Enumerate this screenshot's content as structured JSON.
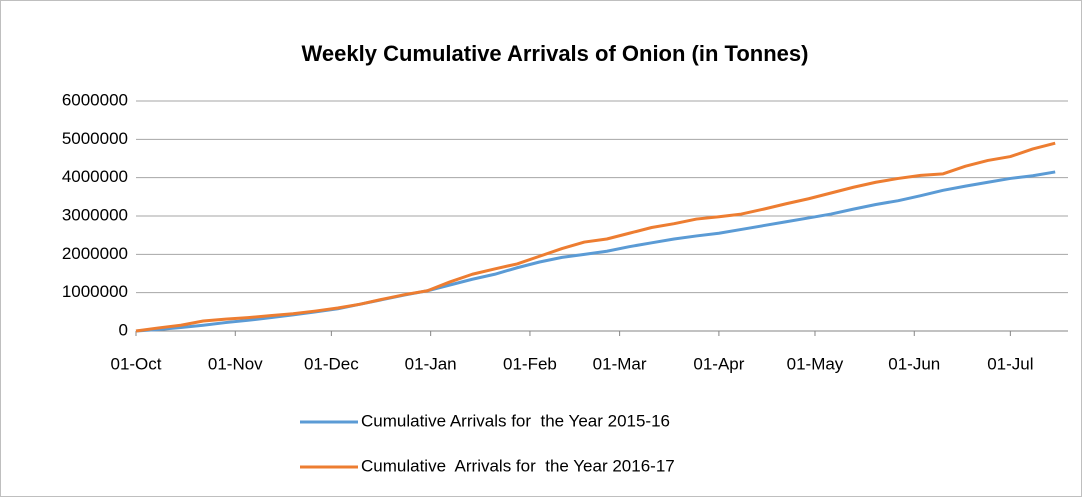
{
  "chart_data": {
    "type": "line",
    "title": "Weekly Cumulative Arrivals of Onion (in Tonnes)",
    "x": [
      0,
      7,
      14,
      21,
      28,
      35,
      42,
      49,
      56,
      63,
      70,
      77,
      84,
      91,
      98,
      105,
      112,
      119,
      126,
      133,
      140,
      147,
      154,
      161,
      168,
      175,
      182,
      189,
      196,
      203,
      210,
      217,
      224,
      231,
      238,
      245,
      252,
      259,
      266,
      273,
      280,
      287
    ],
    "series": [
      {
        "name": "Cumulative Arrivals for  the Year 2015-16",
        "color": "#5b9bd5",
        "values": [
          0,
          40000,
          90000,
          150000,
          220000,
          280000,
          350000,
          420000,
          500000,
          580000,
          700000,
          820000,
          940000,
          1050000,
          1200000,
          1350000,
          1480000,
          1650000,
          1800000,
          1920000,
          2000000,
          2080000,
          2200000,
          2300000,
          2400000,
          2480000,
          2550000,
          2650000,
          2750000,
          2850000,
          2950000,
          3050000,
          3180000,
          3300000,
          3400000,
          3530000,
          3670000,
          3780000,
          3880000,
          3980000,
          4050000,
          4150000
        ]
      },
      {
        "name": "Cumulative  Arrivals for  the Year 2016-17",
        "color": "#ed7d31",
        "values": [
          0,
          80000,
          150000,
          260000,
          310000,
          350000,
          400000,
          450000,
          520000,
          600000,
          700000,
          830000,
          950000,
          1050000,
          1280000,
          1480000,
          1620000,
          1750000,
          1950000,
          2150000,
          2320000,
          2400000,
          2550000,
          2700000,
          2800000,
          2920000,
          2980000,
          3050000,
          3180000,
          3320000,
          3450000,
          3600000,
          3750000,
          3880000,
          3980000,
          4060000,
          4100000,
          4300000,
          4450000,
          4550000,
          4750000,
          4900000
        ]
      }
    ],
    "xlim": [
      0,
      291
    ],
    "xticks": [
      {
        "value": 0,
        "label": "01-Oct"
      },
      {
        "value": 31,
        "label": "01-Nov"
      },
      {
        "value": 61,
        "label": "01-Dec"
      },
      {
        "value": 92,
        "label": "01-Jan"
      },
      {
        "value": 123,
        "label": "01-Feb"
      },
      {
        "value": 151,
        "label": "01-Mar"
      },
      {
        "value": 182,
        "label": "01-Apr"
      },
      {
        "value": 212,
        "label": "01-May"
      },
      {
        "value": 243,
        "label": "01-Jun"
      },
      {
        "value": 273,
        "label": "01-Jul"
      }
    ],
    "ylim": [
      0,
      6000000
    ],
    "yticks": [
      0,
      1000000,
      2000000,
      3000000,
      4000000,
      5000000,
      6000000
    ],
    "grid": true,
    "legend": "bottom"
  }
}
